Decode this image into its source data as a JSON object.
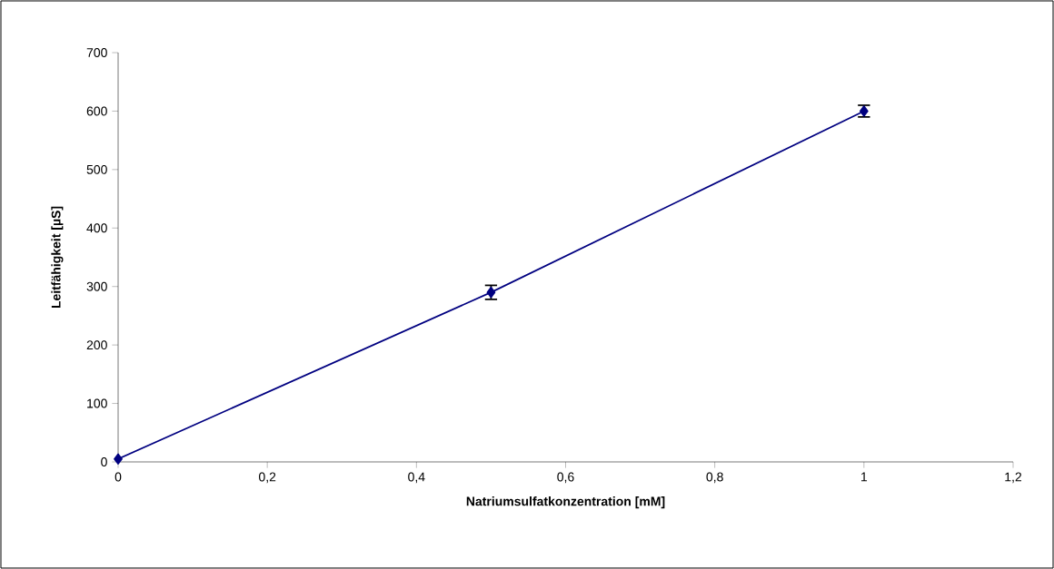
{
  "chart_data": {
    "type": "line",
    "xlabel": "Natriumsulfatkonzentration [mM]",
    "ylabel": "Leitfähigkeit [µS]",
    "x": [
      0,
      0.5,
      1
    ],
    "series": [
      {
        "color": "#000080",
        "values": [
          5,
          290,
          600
        ],
        "errors": [
          null,
          12,
          10
        ]
      }
    ],
    "xlim": [
      0,
      1.2
    ],
    "xticks": [
      0,
      {
        "value": 0.2,
        "label": "0,2"
      },
      {
        "value": 0.4,
        "label": "0,4"
      },
      {
        "value": 0.6,
        "label": "0,6"
      },
      {
        "value": 0.8,
        "label": "0,8"
      },
      1,
      {
        "value": 1.2,
        "label": "1,2"
      }
    ],
    "ylim": [
      0,
      700
    ],
    "yticks": [
      0,
      100,
      200,
      300,
      400,
      500,
      600,
      700
    ],
    "grid": false,
    "marker": "diamond",
    "line_style": "solid"
  }
}
